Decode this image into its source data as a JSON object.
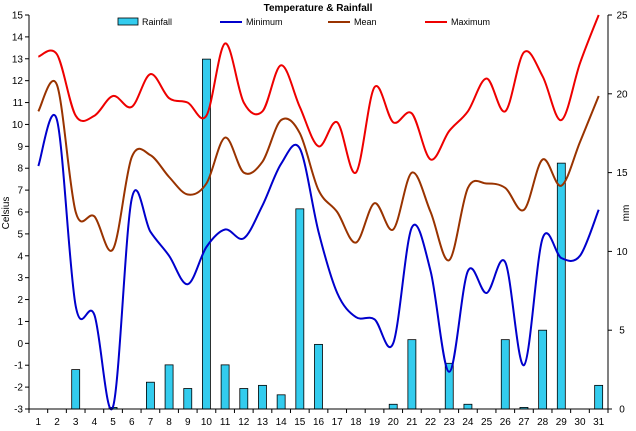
{
  "chart_data": {
    "type": "bar+line",
    "title": "Temperature & Rainfall",
    "ylabel_left": "Celsius",
    "ylabel_right": "mm",
    "x": [
      1,
      2,
      3,
      4,
      5,
      6,
      7,
      8,
      9,
      10,
      11,
      12,
      13,
      14,
      15,
      16,
      17,
      18,
      19,
      20,
      21,
      22,
      23,
      24,
      25,
      26,
      27,
      28,
      29,
      30,
      31
    ],
    "x_tick_labels": [
      "1",
      "2",
      "3",
      "4",
      "5",
      "6",
      "7",
      "8",
      "9",
      "10",
      "11",
      "12",
      "13",
      "14",
      "15",
      "16",
      "17",
      "18",
      "19",
      "20",
      "21",
      "22",
      "23",
      "24",
      "25",
      "26",
      "27",
      "28",
      "29",
      "30",
      "31"
    ],
    "ylim_left": [
      -3,
      15
    ],
    "yticks_left": [
      -3,
      -2,
      -1,
      0,
      1,
      2,
      3,
      4,
      5,
      6,
      7,
      8,
      9,
      10,
      11,
      12,
      13,
      14,
      15
    ],
    "ylim_right": [
      0,
      25
    ],
    "yticks_right": [
      0,
      5,
      10,
      15,
      20,
      25
    ],
    "grid": false,
    "legend_position": "top",
    "series": [
      {
        "name": "Rainfall",
        "kind": "bar",
        "axis": "right",
        "color": "#33CCEE",
        "values": [
          0,
          0,
          2.5,
          0,
          0.1,
          0,
          1.7,
          2.8,
          1.3,
          22.2,
          2.8,
          1.3,
          1.5,
          0.9,
          12.7,
          4.1,
          0,
          0,
          0,
          0.3,
          4.4,
          0,
          2.9,
          0.3,
          0,
          4.4,
          0.1,
          5.0,
          15.6,
          0,
          1.5
        ]
      },
      {
        "name": "Minimum",
        "kind": "line",
        "axis": "left",
        "color": "#0000CC",
        "values": [
          8.1,
          10.2,
          1.7,
          1.3,
          -2.9,
          6.6,
          5.1,
          4.0,
          2.7,
          4.4,
          5.2,
          4.8,
          6.3,
          8.2,
          8.9,
          5.1,
          2.3,
          1.2,
          1.1,
          0.0,
          5.3,
          3.3,
          -1.3,
          3.3,
          2.3,
          3.7,
          -1.0,
          4.8,
          3.9,
          4.0,
          6.1
        ]
      },
      {
        "name": "Mean",
        "kind": "line",
        "axis": "left",
        "color": "#993300",
        "values": [
          10.6,
          11.8,
          6.0,
          5.8,
          4.3,
          8.5,
          8.6,
          7.6,
          6.8,
          7.3,
          9.4,
          7.8,
          8.3,
          10.2,
          9.6,
          7.0,
          6.0,
          4.6,
          6.4,
          5.2,
          7.8,
          6.0,
          3.8,
          7.1,
          7.3,
          7.1,
          6.1,
          8.4,
          7.2,
          9.2,
          11.3
        ]
      },
      {
        "name": "Maximum",
        "kind": "line",
        "axis": "left",
        "color": "#EE0000",
        "values": [
          13.1,
          13.2,
          10.4,
          10.4,
          11.3,
          10.8,
          12.3,
          11.2,
          11.0,
          10.4,
          13.7,
          11.0,
          10.6,
          12.7,
          10.8,
          9.0,
          10.1,
          7.8,
          11.7,
          10.1,
          10.5,
          8.4,
          9.7,
          10.6,
          12.1,
          10.6,
          13.3,
          12.2,
          10.2,
          12.8,
          15.0
        ]
      }
    ]
  }
}
